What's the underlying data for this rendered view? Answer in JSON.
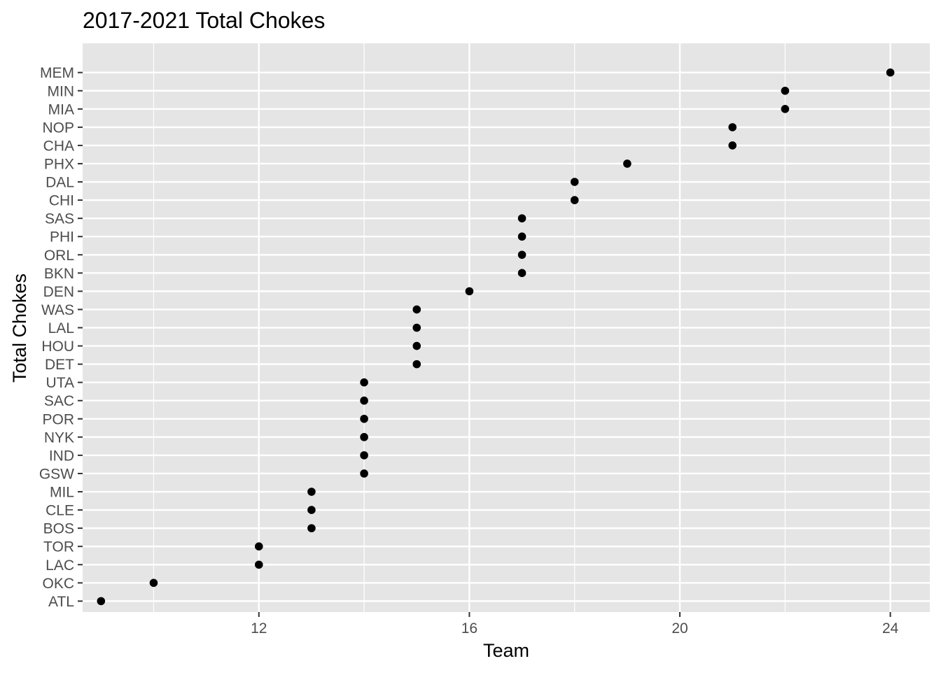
{
  "chart_data": {
    "type": "scatter",
    "title": "2017-2021 Total Chokes",
    "xlabel": "Team",
    "ylabel": "Total Chokes",
    "xlim": [
      8.65,
      24.75
    ],
    "x_ticks": [
      12,
      16,
      20,
      24
    ],
    "x_tick_labels": [
      "12",
      "16",
      "20",
      "24"
    ],
    "grid": true,
    "background": "#E5E5E5",
    "grid_color": "#FFFFFF",
    "point_color": "#000000",
    "categories": [
      "ATL",
      "OKC",
      "LAC",
      "TOR",
      "BOS",
      "CLE",
      "MIL",
      "GSW",
      "IND",
      "NYK",
      "POR",
      "SAC",
      "UTA",
      "DET",
      "HOU",
      "LAL",
      "WAS",
      "DEN",
      "BKN",
      "ORL",
      "PHI",
      "SAS",
      "CHI",
      "DAL",
      "PHX",
      "CHA",
      "NOP",
      "MIA",
      "MIN",
      "MEM"
    ],
    "values": [
      9,
      10,
      12,
      12,
      13,
      13,
      13,
      14,
      14,
      14,
      14,
      14,
      14,
      15,
      15,
      15,
      15,
      16,
      17,
      17,
      17,
      17,
      18,
      18,
      19,
      21,
      21,
      22,
      22,
      24
    ]
  }
}
